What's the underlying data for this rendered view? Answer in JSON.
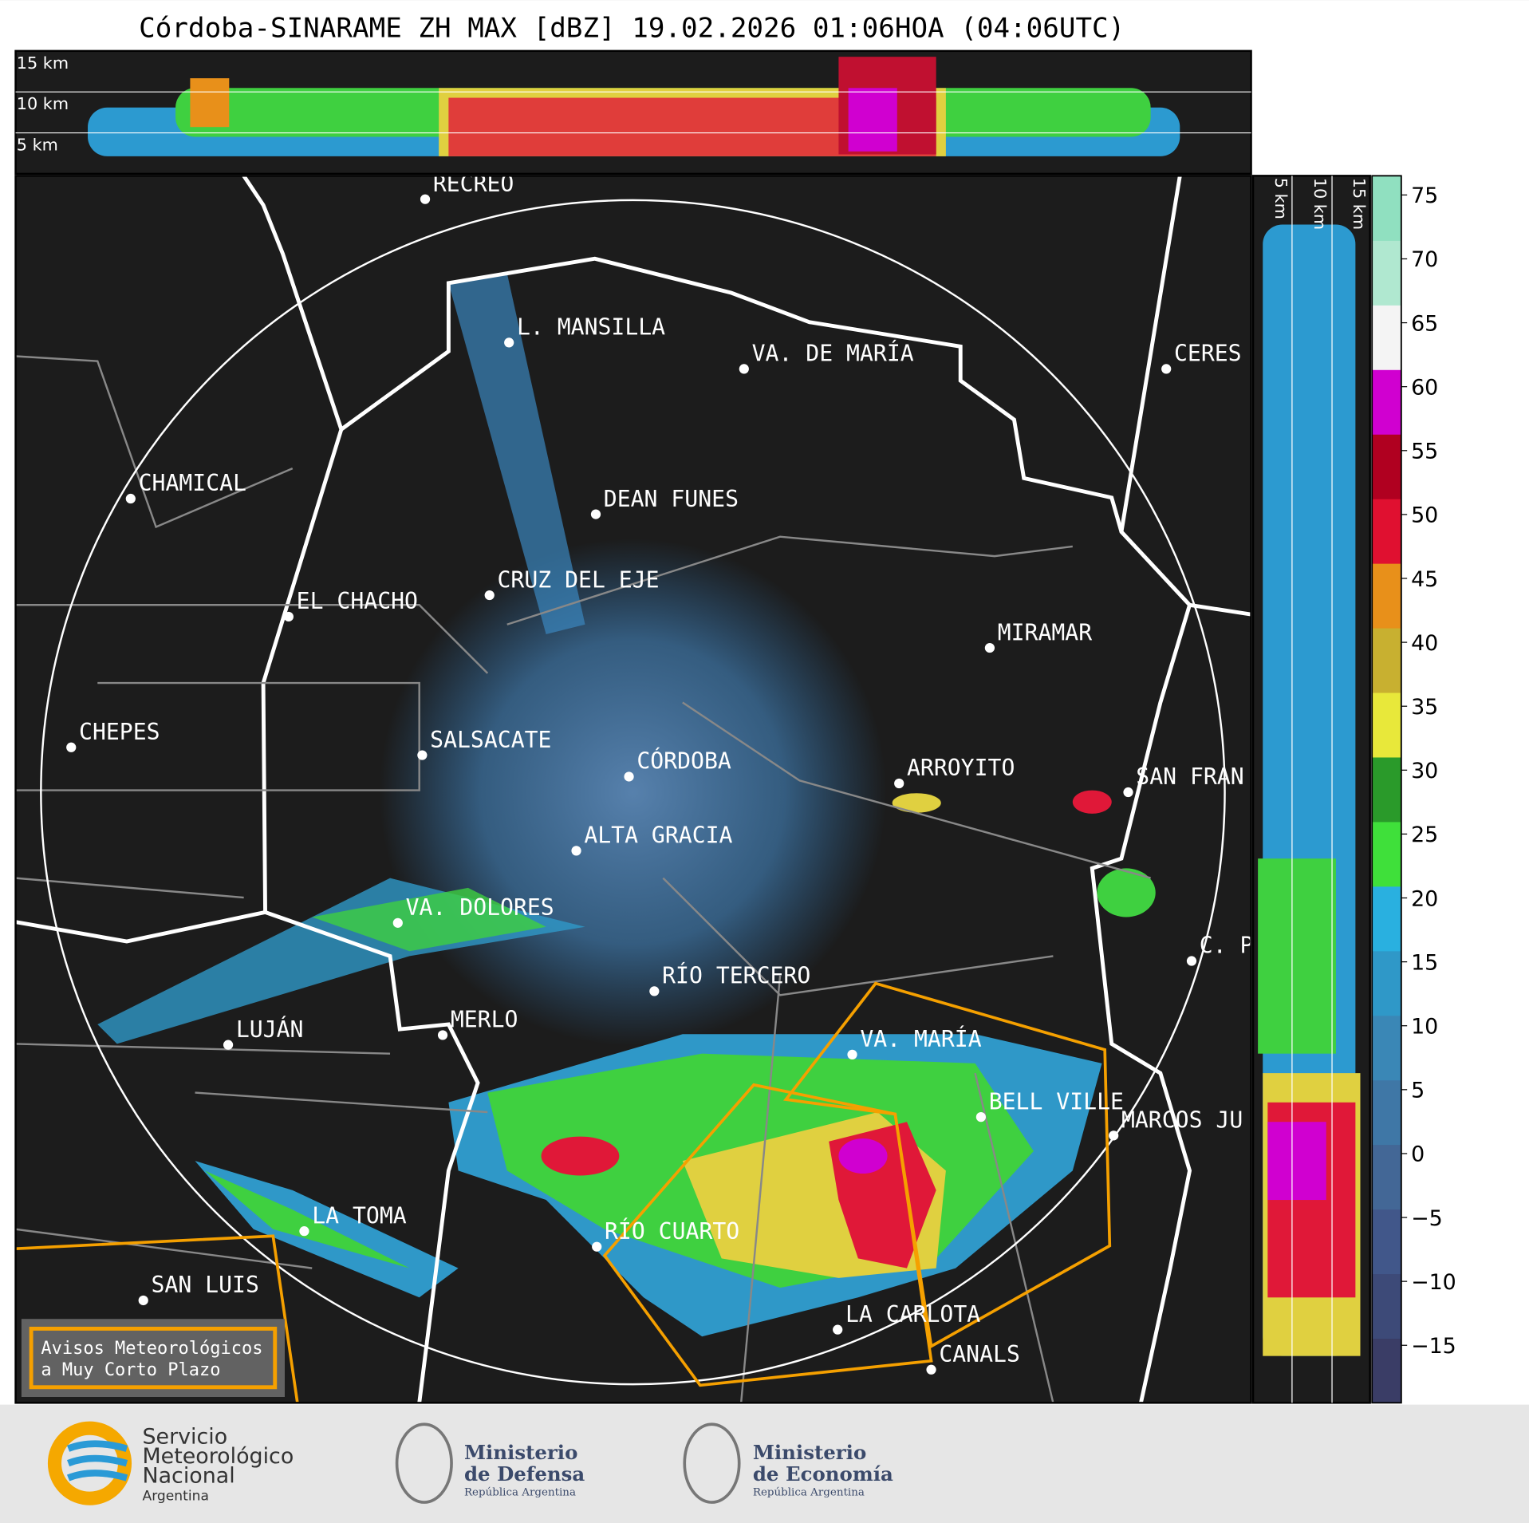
{
  "header": {
    "title": "Córdoba-SINARAME ZH MAX [dBZ] 19.02.2026 01:06HOA (04:06UTC)"
  },
  "top_panel": {
    "labels": [
      "15 km",
      "10 km",
      "5 km"
    ]
  },
  "side_panel": {
    "labels": [
      "5 km",
      "10 km",
      "15 km"
    ]
  },
  "cities": [
    "RECREO",
    "L. MANSILLA",
    "VA. DE MARÍA",
    "CERES",
    "CHAMICAL",
    "DEAN FUNES",
    "CRUZ DEL EJE",
    "EL CHACHO",
    "MIRAMAR",
    "CHEPES",
    "SALSACATE",
    "CÓRDOBA",
    "ARROYITO",
    "SAN FRAN",
    "ALTA GRACIA",
    "VA. DOLORES",
    "C. P",
    "RÍO TERCERO",
    "LUJÁN",
    "MERLO",
    "VA. MARÍA",
    "BELL VILLE",
    "MARCOS JU",
    "LA TOMA",
    "RÍO CUARTO",
    "SAN LUIS",
    "LA CARLOTA",
    "CANALS"
  ],
  "warning_box": {
    "lines": [
      "Avisos Meteorológicos",
      "a Muy Corto Plazo"
    ]
  },
  "colorbar": {
    "range": [
      -19.5,
      76.5
    ],
    "ticks": [
      75,
      70,
      65,
      60,
      55,
      50,
      45,
      40,
      35,
      30,
      25,
      20,
      15,
      10,
      5,
      0,
      {
        "value": -5,
        "label": "−5"
      },
      {
        "value": -10,
        "label": "−10"
      },
      {
        "value": -15,
        "label": "−15"
      }
    ],
    "colors": [
      "#3a3d66",
      "#3d4a78",
      "#41578a",
      "#436796",
      "#3f77a6",
      "#3a87b6",
      "#2f98c8",
      "#29b0e0",
      "#3fe03a",
      "#2a9a2a",
      "#e8e83a",
      "#c8b030",
      "#e8901a",
      "#e01030",
      "#b00020",
      "#d000d0",
      "#f4f4f4",
      "#b0e8d0",
      "#90e0c0"
    ]
  },
  "logos": {
    "smn": [
      "Servicio",
      "Meteorológico",
      "Nacional",
      "Argentina"
    ],
    "defensa": [
      "Ministerio",
      "de Defensa",
      "República Argentina"
    ],
    "economia": [
      "Ministerio",
      "de Economía",
      "República Argentina"
    ]
  }
}
